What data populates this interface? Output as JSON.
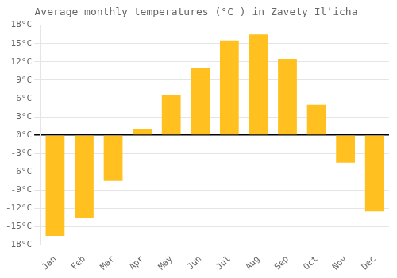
{
  "chart_data": {
    "type": "bar",
    "title": "Average monthly temperatures (°C ) in Zavety Ilʹicha",
    "categories": [
      "Jan",
      "Feb",
      "Mar",
      "Apr",
      "May",
      "Jun",
      "Jul",
      "Aug",
      "Sep",
      "Oct",
      "Nov",
      "Dec"
    ],
    "values": [
      -16.5,
      -13.5,
      -7.5,
      1.0,
      6.5,
      11.0,
      15.5,
      16.5,
      12.5,
      5.0,
      -4.5,
      -12.5
    ],
    "color": "#FFC020",
    "ylim": [
      -18,
      18
    ],
    "yticks": [
      {
        "value": -18,
        "label": "-18°C"
      },
      {
        "value": -15,
        "label": "-15°C"
      },
      {
        "value": -12,
        "label": "-12°C"
      },
      {
        "value": -9,
        "label": "-9°C"
      },
      {
        "value": -6,
        "label": "-6°C"
      },
      {
        "value": -3,
        "label": "-3°C"
      },
      {
        "value": 0,
        "label": "0°C"
      },
      {
        "value": 3,
        "label": "3°C"
      },
      {
        "value": 6,
        "label": "6°C"
      },
      {
        "value": 9,
        "label": "9°C"
      },
      {
        "value": 12,
        "label": "12°C"
      },
      {
        "value": 15,
        "label": "15°C"
      },
      {
        "value": 18,
        "label": "18°C"
      }
    ],
    "grid": true
  }
}
